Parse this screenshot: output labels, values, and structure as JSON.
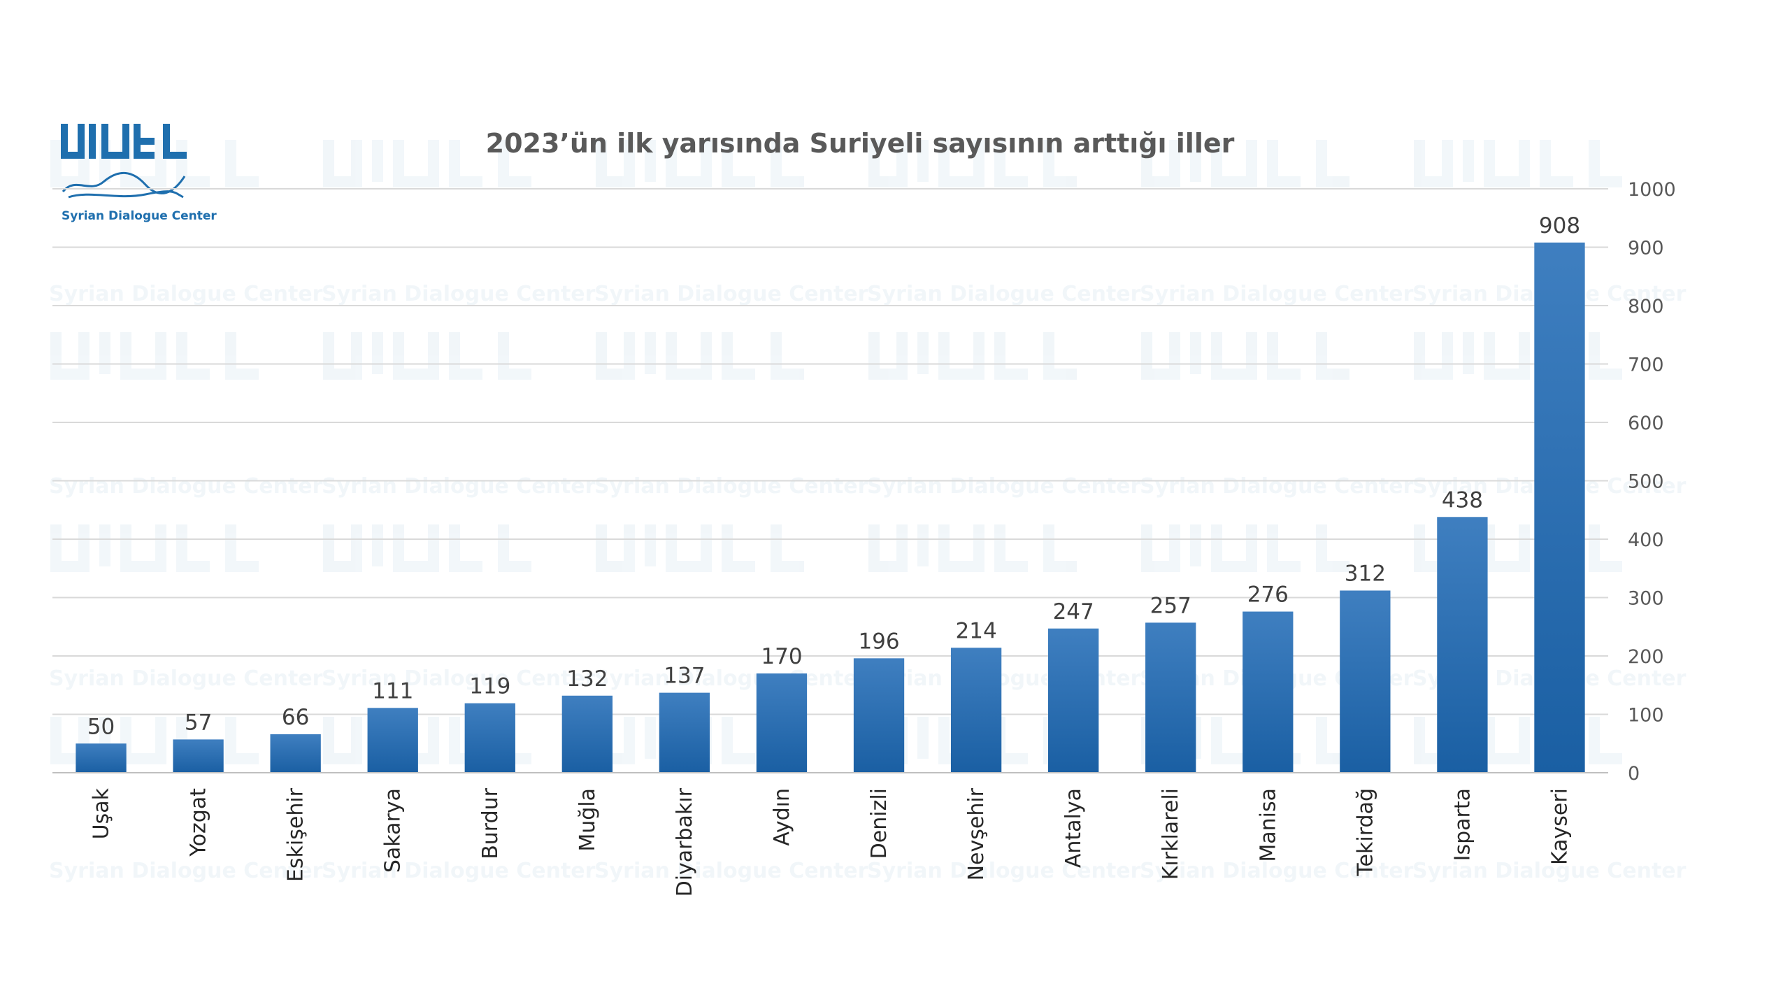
{
  "logo": {
    "name": "Syrian Dialogue Center",
    "color": "#1f6fae"
  },
  "watermark": {
    "text": "Syrian Dialogue Center"
  },
  "chart_data": {
    "type": "bar",
    "title": "2023’ün ilk yarısında Suriyeli sayısının arttığı iller",
    "categories": [
      "Uşak",
      "Yozgat",
      "Eskişehir",
      "Sakarya",
      "Burdur",
      "Muğla",
      "Diyarbakır",
      "Aydın",
      "Denizli",
      "Nevşehir",
      "Antalya",
      "Kırklareli",
      "Manisa",
      "Tekirdağ",
      "Isparta",
      "Kayseri"
    ],
    "values": [
      50,
      57,
      66,
      111,
      119,
      132,
      137,
      170,
      196,
      214,
      247,
      257,
      276,
      312,
      438,
      908
    ],
    "ylim": [
      0,
      1000
    ],
    "yticks": [
      0,
      100,
      200,
      300,
      400,
      500,
      600,
      700,
      800,
      900,
      1000
    ],
    "y_axis_position": "right",
    "grid": true,
    "legend": "none",
    "data_labels": true,
    "bar_color_top": "#3f7fc0",
    "bar_color_bottom": "#1a5fa3",
    "xlabel": "",
    "ylabel": ""
  }
}
